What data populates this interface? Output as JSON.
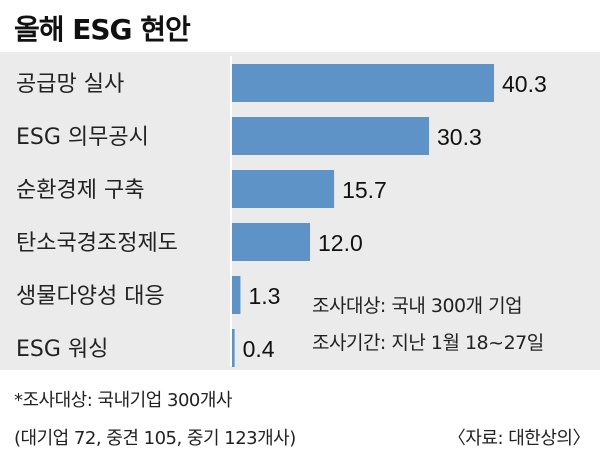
{
  "header": {
    "title": "올해 ESG 현안"
  },
  "chart_data": {
    "type": "bar",
    "orientation": "horizontal",
    "categories": [
      "공급망 실사",
      "ESG 의무공시",
      "순환경제 구축",
      "탄소국경조정제도",
      "생물다양성 대응",
      "ESG 워싱"
    ],
    "values": [
      40.3,
      30.3,
      15.7,
      12.0,
      1.3,
      0.4
    ],
    "value_labels": [
      "40.3",
      "30.3",
      "15.7",
      "12.0",
      "1.3",
      "0.4"
    ],
    "title": "올해 ESG 현안",
    "xlabel": "",
    "ylabel": "",
    "xlim": [
      0,
      40.3
    ],
    "grid": false,
    "legend": "none",
    "colors": {
      "bar": "#5e93c7",
      "panel": "#ebebeb"
    }
  },
  "survey_info": {
    "target": "조사대상: 국내 300개 기업",
    "period": "조사기간: 지난 1월 18~27일"
  },
  "footnote": {
    "line1": "*조사대상: 국내기업 300개사",
    "line2": "(대기업 72, 중견 105, 중기 123개사)"
  },
  "source": "〈자료: 대한상의〉"
}
